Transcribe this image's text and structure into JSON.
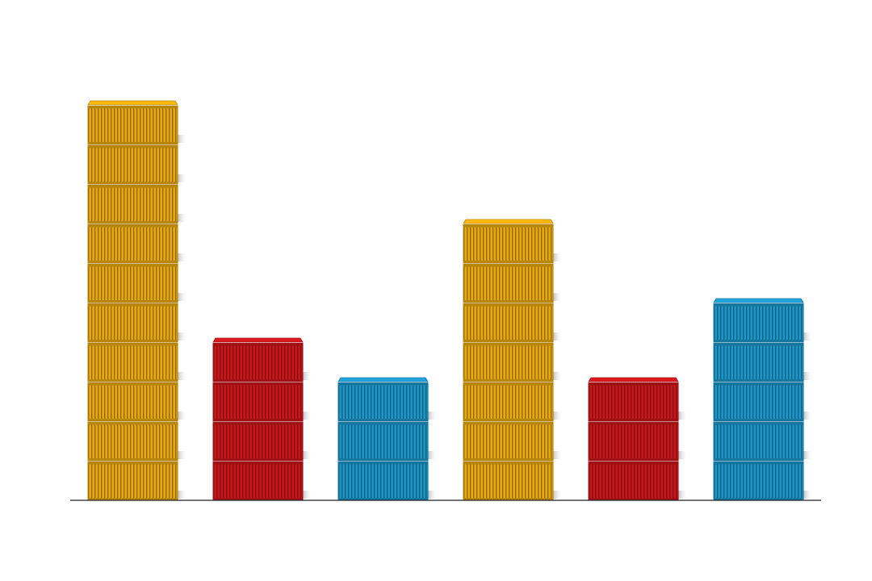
{
  "chart_data": {
    "type": "bar",
    "categories": [
      null,
      null,
      null,
      null,
      null,
      null
    ],
    "values": [
      10,
      4,
      3,
      7,
      3,
      5
    ],
    "colors": [
      "#e6a80c",
      "#c8161b",
      "#1c95c8",
      "#e6a80c",
      "#c8161b",
      "#1c95c8"
    ],
    "ylim": [
      0,
      10
    ]
  }
}
